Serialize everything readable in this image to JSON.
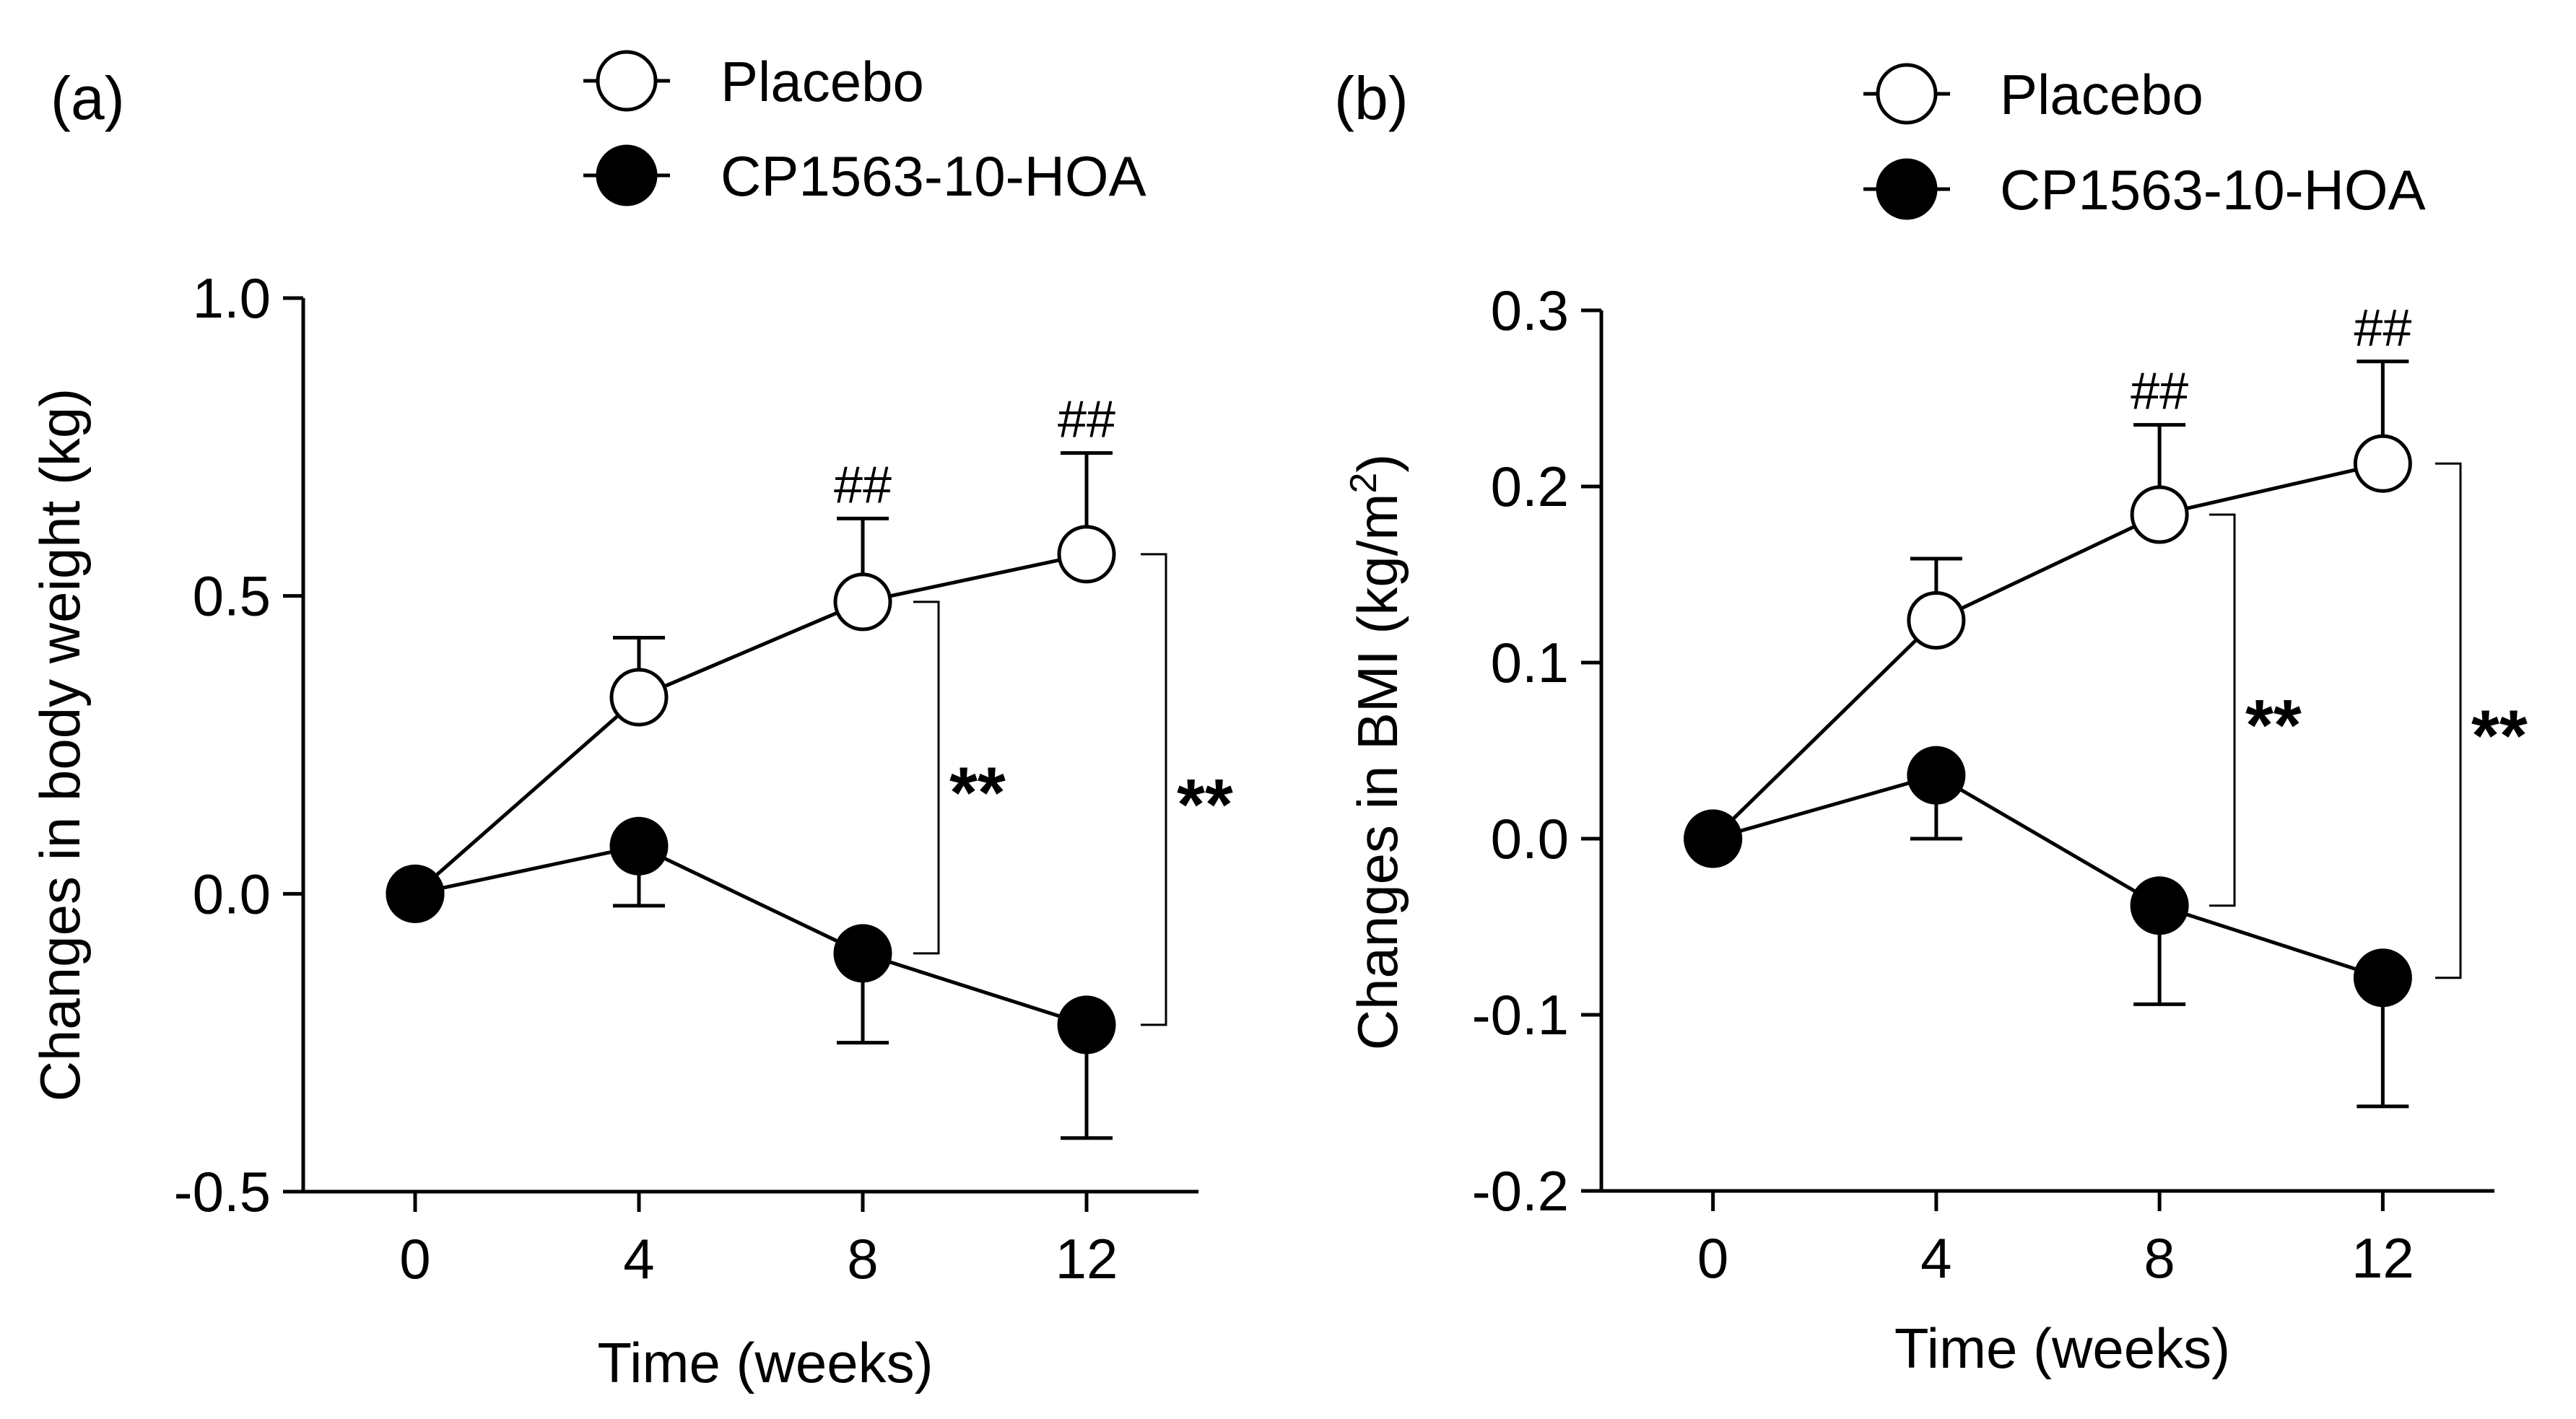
{
  "chart_data": [
    {
      "type": "line",
      "panel_label": "(a)",
      "xlabel": "Time (weeks)",
      "ylabel": "Changes in body weight (kg)",
      "ylabel_sup": "",
      "ylabel_tail": "",
      "x": [
        0,
        4,
        8,
        12
      ],
      "x_tick_labels": [
        "0",
        "4",
        "8",
        "12"
      ],
      "xlim": [
        -2,
        14
      ],
      "ylim": [
        -0.5,
        1.0
      ],
      "y_ticks": [
        -0.5,
        0.0,
        0.5,
        1.0
      ],
      "y_tick_labels": [
        "-0.5",
        "0.0",
        "0.5",
        "1.0"
      ],
      "series": [
        {
          "name": "Placebo",
          "marker": "open-circle",
          "values": [
            0,
            0.33,
            0.49,
            0.57
          ],
          "error": [
            0,
            0.1,
            0.14,
            0.17
          ],
          "error_dir": "up"
        },
        {
          "name": "CP1563-10-HOA",
          "marker": "filled-circle",
          "values": [
            0,
            0.08,
            -0.1,
            -0.22
          ],
          "error": [
            0,
            0.1,
            0.15,
            0.19
          ],
          "error_dir": "down"
        }
      ],
      "annotations": [
        {
          "text": "##",
          "x": 8,
          "series": 0
        },
        {
          "text": "##",
          "x": 12,
          "series": 0
        }
      ],
      "brackets": [
        {
          "x": 8,
          "text": "**"
        },
        {
          "x": 12,
          "text": "**"
        }
      ]
    },
    {
      "type": "line",
      "panel_label": "(b)",
      "xlabel": "Time (weeks)",
      "ylabel": "Changes in BMI (kg/m",
      "ylabel_sup": "2",
      "ylabel_tail": ")",
      "x": [
        0,
        4,
        8,
        12
      ],
      "x_tick_labels": [
        "0",
        "4",
        "8",
        "12"
      ],
      "xlim": [
        -2,
        14
      ],
      "ylim": [
        -0.2,
        0.3
      ],
      "y_ticks": [
        -0.2,
        -0.1,
        0.0,
        0.1,
        0.2,
        0.3
      ],
      "y_tick_labels": [
        "-0.2",
        "-0.1",
        "0.0",
        "0.1",
        "0.2",
        "0.3"
      ],
      "series": [
        {
          "name": "Placebo",
          "marker": "open-circle",
          "values": [
            0,
            0.124,
            0.184,
            0.213
          ],
          "error": [
            0,
            0.035,
            0.051,
            0.058
          ],
          "error_dir": "up"
        },
        {
          "name": "CP1563-10-HOA",
          "marker": "filled-circle",
          "values": [
            0,
            0.036,
            -0.038,
            -0.079
          ],
          "error": [
            0,
            0.036,
            0.056,
            0.073
          ],
          "error_dir": "down"
        }
      ],
      "annotations": [
        {
          "text": "##",
          "x": 8,
          "series": 0
        },
        {
          "text": "##",
          "x": 12,
          "series": 0
        }
      ],
      "brackets": [
        {
          "x": 8,
          "text": "**"
        },
        {
          "x": 12,
          "text": "**"
        }
      ]
    }
  ],
  "legend": {
    "entries": [
      {
        "label": "Placebo",
        "marker": "open-circle"
      },
      {
        "label": "CP1563-10-HOA",
        "marker": "filled-circle"
      }
    ]
  }
}
